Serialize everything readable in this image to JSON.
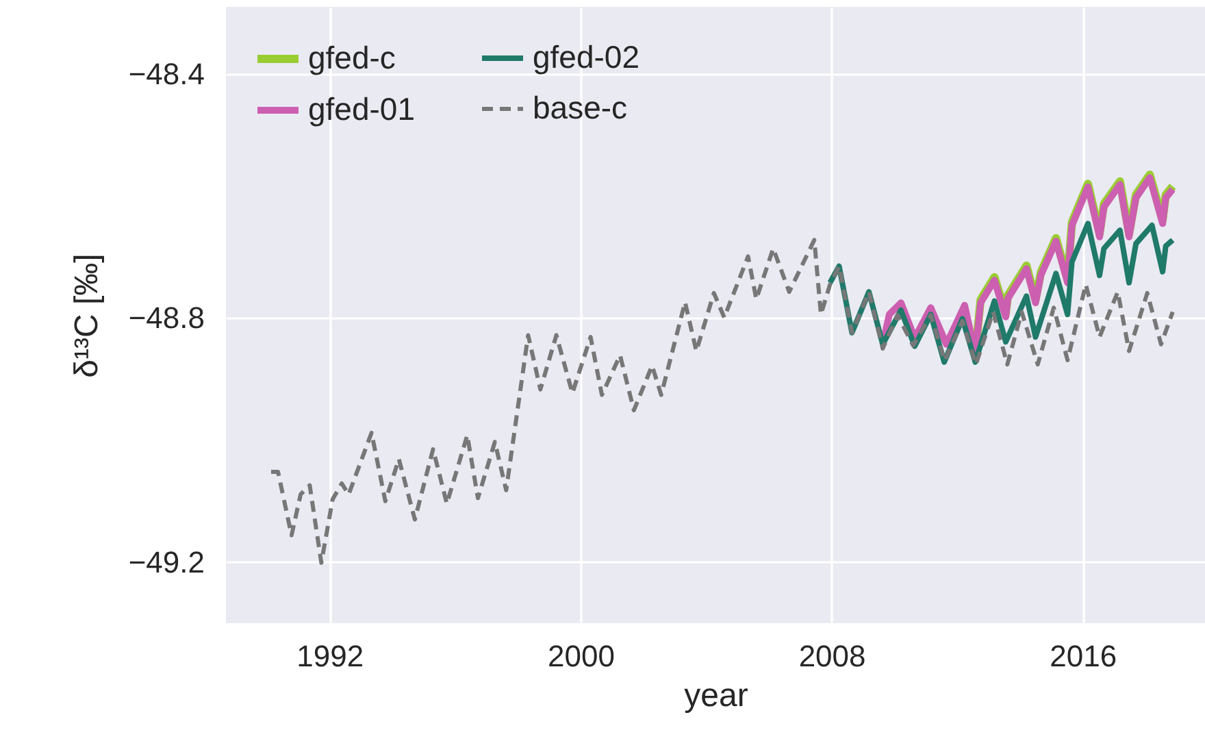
{
  "chart_data": {
    "type": "line",
    "xlabel": "year",
    "ylabel": "δ¹³C [‰]",
    "xlim": [
      1988.7,
      2019.9
    ],
    "ylim": [
      -49.3,
      -48.29
    ],
    "xticks": [
      1992,
      2000,
      2008,
      2016
    ],
    "yticks": [
      -48.4,
      -48.8,
      -49.2
    ],
    "grid": true,
    "legend": "top left",
    "series": [
      {
        "name": "gfed-c",
        "color": "#9acd32",
        "line_style": "solid",
        "x": [
          2012.58,
          2012.75,
          2013.19,
          2013.55,
          2013.62,
          2014.21,
          2014.5,
          2014.67,
          2015.15,
          2015.52,
          2015.66,
          2016.17,
          2016.54,
          2016.68,
          2017.19,
          2017.48,
          2017.7,
          2018.14,
          2018.55,
          2018.65,
          2018.87
        ],
        "values": [
          -48.858,
          -48.77,
          -48.733,
          -48.793,
          -48.763,
          -48.714,
          -48.77,
          -48.725,
          -48.669,
          -48.737,
          -48.643,
          -48.58,
          -48.662,
          -48.613,
          -48.576,
          -48.662,
          -48.598,
          -48.565,
          -48.64,
          -48.598,
          -48.584
        ]
      },
      {
        "name": "gfed-01",
        "color": "#cc5fb0",
        "line_style": "solid",
        "x": [
          2009.63,
          2009.84,
          2010.21,
          2010.65,
          2011.16,
          2011.66,
          2012.24,
          2012.58,
          2012.75,
          2013.19,
          2013.55,
          2013.62,
          2014.21,
          2014.5,
          2014.67,
          2015.15,
          2015.52,
          2015.66,
          2016.17,
          2016.54,
          2016.68,
          2017.19,
          2017.48,
          2017.7,
          2018.14,
          2018.55,
          2018.65,
          2018.87
        ],
        "values": [
          -48.843,
          -48.794,
          -48.775,
          -48.833,
          -48.783,
          -48.843,
          -48.779,
          -48.858,
          -48.775,
          -48.738,
          -48.798,
          -48.768,
          -48.719,
          -48.775,
          -48.73,
          -48.674,
          -48.742,
          -48.648,
          -48.585,
          -48.667,
          -48.618,
          -48.581,
          -48.667,
          -48.603,
          -48.57,
          -48.645,
          -48.603,
          -48.589
        ]
      },
      {
        "name": "gfed-02",
        "color": "#1f7a6a",
        "line_style": "solid",
        "x": [
          2007.95,
          2008.24,
          2008.65,
          2009.19,
          2009.63,
          2010.21,
          2010.65,
          2011.16,
          2011.59,
          2012.17,
          2012.58,
          2013.19,
          2013.55,
          2014.21,
          2014.5,
          2015.15,
          2015.52,
          2015.66,
          2016.17,
          2016.54,
          2016.68,
          2017.19,
          2017.48,
          2017.7,
          2018.21,
          2018.55,
          2018.65,
          2018.87
        ],
        "values": [
          -48.742,
          -48.715,
          -48.824,
          -48.757,
          -48.843,
          -48.787,
          -48.846,
          -48.794,
          -48.872,
          -48.801,
          -48.872,
          -48.772,
          -48.839,
          -48.764,
          -48.831,
          -48.727,
          -48.794,
          -48.708,
          -48.645,
          -48.73,
          -48.686,
          -48.656,
          -48.742,
          -48.678,
          -48.648,
          -48.724,
          -48.682,
          -48.672
        ]
      },
      {
        "name": "base-c",
        "color": "#777777",
        "line_style": "dashed",
        "x": [
          1990.14,
          1990.36,
          1990.79,
          1991.08,
          1991.37,
          1991.74,
          1992.1,
          1992.39,
          1992.61,
          1993.34,
          1993.78,
          1994.21,
          1994.72,
          1995.3,
          1995.74,
          1996.39,
          1996.73,
          1997.27,
          1997.63,
          1998.33,
          1998.72,
          1999.23,
          1999.74,
          2000.32,
          2000.68,
          2001.26,
          2001.7,
          2002.28,
          2002.57,
          2003.33,
          2003.69,
          2004.25,
          2004.58,
          2005.34,
          2005.6,
          2006.14,
          2006.65,
          2007.45,
          2007.66,
          2007.95,
          2008.24,
          2008.65,
          2009.19,
          2009.63,
          2010.1,
          2010.6,
          2011.16,
          2011.6,
          2012.17,
          2012.6,
          2013.15,
          2013.6,
          2014.06,
          2014.57,
          2015.08,
          2015.52,
          2016.1,
          2016.54,
          2017.12,
          2017.48,
          2018.06,
          2018.5,
          2018.87
        ],
        "values": [
          -49.052,
          -49.052,
          -49.156,
          -49.089,
          -49.074,
          -49.201,
          -49.097,
          -49.071,
          -49.089,
          -48.988,
          -49.1,
          -49.031,
          -49.13,
          -49.015,
          -49.104,
          -48.992,
          -49.095,
          -49.003,
          -49.082,
          -48.828,
          -48.917,
          -48.828,
          -48.923,
          -48.831,
          -48.926,
          -48.861,
          -48.951,
          -48.878,
          -48.926,
          -48.774,
          -48.854,
          -48.759,
          -48.799,
          -48.699,
          -48.769,
          -48.686,
          -48.757,
          -48.672,
          -48.794,
          -48.745,
          -48.715,
          -48.824,
          -48.757,
          -48.85,
          -48.795,
          -48.845,
          -48.795,
          -48.87,
          -48.805,
          -48.876,
          -48.79,
          -48.876,
          -48.79,
          -48.876,
          -48.783,
          -48.869,
          -48.745,
          -48.831,
          -48.757,
          -48.854,
          -48.759,
          -48.843,
          -48.79
        ]
      }
    ]
  }
}
